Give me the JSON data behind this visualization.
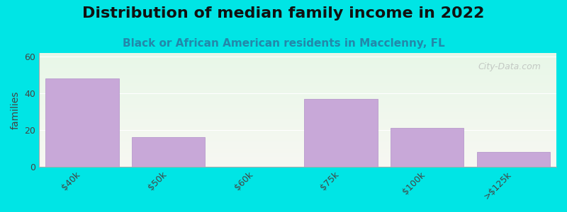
{
  "title": "Distribution of median family income in 2022",
  "subtitle": "Black or African American residents in Macclenny, FL",
  "categories": [
    "$40k",
    "$50k",
    "$60k",
    "$75k",
    "$100k",
    ">$125k"
  ],
  "values": [
    48,
    16,
    0,
    37,
    21,
    8
  ],
  "bar_color": "#c8a8d8",
  "bar_edgecolor": "#b090c8",
  "ylabel": "families",
  "ylim": [
    0,
    62
  ],
  "yticks": [
    0,
    20,
    40,
    60
  ],
  "bg_outer": "#00e5e5",
  "title_fontsize": 16,
  "subtitle_fontsize": 11,
  "watermark": "City-Data.com",
  "bar_width": 0.85
}
